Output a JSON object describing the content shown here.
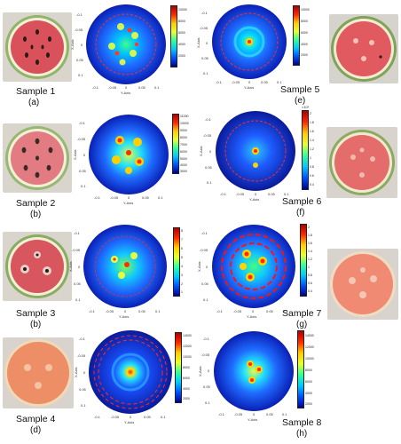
{
  "panels": [
    {
      "id": "a",
      "caption": "Sample 1",
      "letter": "(a)",
      "x_axis_label": "Y-Axis",
      "y_axis_label": "X-Axis",
      "x_ticks": [
        "-0.1",
        "-0.05",
        "0",
        "0.05",
        "0.1"
      ],
      "y_ticks": [
        "-0.1",
        "-0.05",
        "0",
        "0.05",
        "0.1"
      ],
      "colorbar_ticks": [
        "10000",
        "8000",
        "6000",
        "4000",
        "2000"
      ],
      "colorbar_exponent": ""
    },
    {
      "id": "e",
      "caption": "Sample 5",
      "letter": "(e)",
      "x_axis_label": "Y-Axis",
      "y_axis_label": "X-Axis",
      "x_ticks": [
        "-0.1",
        "-0.05",
        "0",
        "0.05",
        "0.1"
      ],
      "y_ticks": [
        "-0.1",
        "-0.05",
        "0",
        "0.05",
        "0.1"
      ],
      "colorbar_ticks": [
        "10000",
        "8000",
        "6000",
        "4000",
        "2000"
      ],
      "colorbar_exponent": ""
    },
    {
      "id": "b",
      "caption": "Sample 2",
      "letter": "(b)",
      "x_axis_label": "Y-Axis",
      "y_axis_label": "X-Axis",
      "x_ticks": [
        "-0.1",
        "-0.05",
        "0",
        "0.05",
        "0.1"
      ],
      "y_ticks": [
        "-0.1",
        "-0.05",
        "0",
        "0.05",
        "0.1"
      ],
      "colorbar_ticks": [
        "11000",
        "10000",
        "9000",
        "8000",
        "7000",
        "6000",
        "5000",
        "4000",
        "3000"
      ],
      "colorbar_exponent": ""
    },
    {
      "id": "f",
      "caption": "Sample 6",
      "letter": "(f)",
      "x_axis_label": "Y-Axis",
      "y_axis_label": "X-Axis",
      "x_ticks": [
        "-0.1",
        "-0.05",
        "0",
        "0.05",
        "0.1"
      ],
      "y_ticks": [
        "-0.1",
        "-0.05",
        "0",
        "0.05",
        "0.1"
      ],
      "colorbar_ticks": [
        "2",
        "1.8",
        "1.6",
        "1.4",
        "1.2",
        "1",
        "0.8",
        "0.6",
        "0.4"
      ],
      "colorbar_exponent": "×10⁴"
    },
    {
      "id": "b2",
      "caption": "Sample 3",
      "letter": "(b)",
      "x_axis_label": "Y-Axis",
      "y_axis_label": "X-Axis",
      "x_ticks": [
        "-0.1",
        "-0.05",
        "0",
        "0.05",
        "0.1"
      ],
      "y_ticks": [
        "-0.1",
        "-0.05",
        "0",
        "0.05",
        "0.1"
      ],
      "colorbar_ticks": [
        "8",
        "7",
        "6",
        "5",
        "4",
        "3",
        "2",
        "1"
      ],
      "colorbar_exponent": ""
    },
    {
      "id": "g",
      "caption": "Sample 7",
      "letter": "(g)",
      "x_axis_label": "Y-Axis",
      "y_axis_label": "X-Axis",
      "x_ticks": [
        "-0.1",
        "-0.05",
        "0",
        "0.05",
        "0.1"
      ],
      "y_ticks": [
        "-0.1",
        "-0.05",
        "0",
        "0.05",
        "0.1"
      ],
      "colorbar_ticks": [
        "2",
        "1.8",
        "1.6",
        "1.4",
        "1.2",
        "1",
        "0.8",
        "0.6",
        "0.4"
      ],
      "colorbar_exponent": ""
    },
    {
      "id": "d",
      "caption": "Sample 4",
      "letter": "(d)",
      "x_axis_label": "Y-Axis",
      "y_axis_label": "X-Axis",
      "x_ticks": [
        "-0.1",
        "-0.05",
        "0",
        "0.05",
        "0.1"
      ],
      "y_ticks": [
        "-0.1",
        "-0.05",
        "0",
        "0.05",
        "0.1"
      ],
      "colorbar_ticks": [
        "14000",
        "12000",
        "10000",
        "8000",
        "6000",
        "4000",
        "2000"
      ],
      "colorbar_exponent": ""
    },
    {
      "id": "h",
      "caption": "Sample 8",
      "letter": "(h)",
      "x_axis_label": "Y-Axis",
      "y_axis_label": "X-Axis",
      "x_ticks": [
        "-0.1",
        "-0.05",
        "0",
        "0.05",
        "0.1"
      ],
      "y_ticks": [
        "-0.1",
        "-0.05",
        "0",
        "0.05",
        "0.1"
      ],
      "colorbar_ticks": [
        "14000",
        "12000",
        "10000",
        "8000",
        "6000",
        "4000",
        "2000"
      ],
      "colorbar_exponent": ""
    }
  ]
}
